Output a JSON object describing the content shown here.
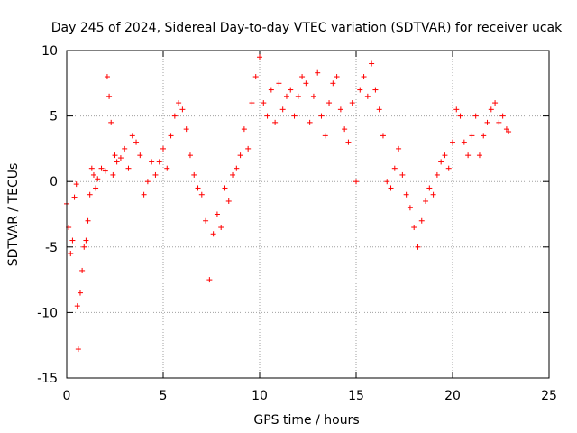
{
  "chart_data": {
    "type": "scatter",
    "title": "Day 245 of 2024, Sidereal Day-to-day VTEC variation (SDTVAR) for receiver ucak",
    "xlabel": "GPS time / hours",
    "ylabel": "SDTVAR / TECUs",
    "xlim": [
      0,
      25
    ],
    "ylim": [
      -15,
      10
    ],
    "xticks": [
      0,
      5,
      10,
      15,
      20,
      25
    ],
    "yticks": [
      -15,
      -10,
      -5,
      0,
      5,
      10
    ],
    "xtick_labels": [
      "0",
      "5",
      "10",
      "15",
      "20",
      "25"
    ],
    "ytick_labels": [
      "-15",
      "-10",
      "-5",
      "0",
      "5",
      "10"
    ],
    "grid": true,
    "marker": "+",
    "color": "#ff0000",
    "series": [
      {
        "name": "SDTVAR",
        "x": [
          0.0,
          0.1,
          0.2,
          0.3,
          0.4,
          0.5,
          0.55,
          0.6,
          0.7,
          0.8,
          0.9,
          1.0,
          1.1,
          1.2,
          1.3,
          1.4,
          1.5,
          1.6,
          1.8,
          2.0,
          2.1,
          2.2,
          2.3,
          2.4,
          2.5,
          2.6,
          2.8,
          3.0,
          3.2,
          3.4,
          3.6,
          3.8,
          4.0,
          4.2,
          4.4,
          4.6,
          4.8,
          5.0,
          5.2,
          5.4,
          5.6,
          5.8,
          6.0,
          6.2,
          6.4,
          6.6,
          6.8,
          7.0,
          7.2,
          7.4,
          7.6,
          7.8,
          8.0,
          8.2,
          8.4,
          8.6,
          8.8,
          9.0,
          9.2,
          9.4,
          9.6,
          9.8,
          10.0,
          10.2,
          10.4,
          10.6,
          10.8,
          11.0,
          11.2,
          11.4,
          11.6,
          11.8,
          12.0,
          12.2,
          12.4,
          12.6,
          12.8,
          13.0,
          13.2,
          13.4,
          13.6,
          13.8,
          14.0,
          14.2,
          14.4,
          14.6,
          14.8,
          15.0,
          15.2,
          15.4,
          15.6,
          15.8,
          16.0,
          16.2,
          16.4,
          16.6,
          16.8,
          17.0,
          17.2,
          17.4,
          17.6,
          17.8,
          18.0,
          18.2,
          18.4,
          18.6,
          18.8,
          19.0,
          19.2,
          19.4,
          19.6,
          19.8,
          20.0,
          20.2,
          20.4,
          20.6,
          20.8,
          21.0,
          21.2,
          21.4,
          21.6,
          21.8,
          22.0,
          22.2,
          22.4,
          22.6,
          22.8,
          22.9
        ],
        "y": [
          -1.7,
          -3.5,
          -5.5,
          -4.5,
          -1.2,
          -0.2,
          -9.5,
          -12.8,
          -8.5,
          -6.8,
          -5.0,
          -4.5,
          -3.0,
          -1.0,
          1.0,
          0.5,
          -0.5,
          0.2,
          1.0,
          0.8,
          8.0,
          6.5,
          4.5,
          0.5,
          2.0,
          1.5,
          1.8,
          2.5,
          1.0,
          3.5,
          3.0,
          2.0,
          -1.0,
          0.0,
          1.5,
          0.5,
          1.5,
          2.5,
          1.0,
          3.5,
          5.0,
          6.0,
          5.5,
          4.0,
          2.0,
          0.5,
          -0.5,
          -1.0,
          -3.0,
          -7.5,
          -4.0,
          -2.5,
          -3.5,
          -0.5,
          -1.5,
          0.5,
          1.0,
          2.0,
          4.0,
          2.5,
          6.0,
          8.0,
          9.5,
          6.0,
          5.0,
          7.0,
          4.5,
          7.5,
          5.5,
          6.5,
          7.0,
          5.0,
          6.5,
          8.0,
          7.5,
          4.5,
          6.5,
          8.3,
          5.0,
          3.5,
          6.0,
          7.5,
          8.0,
          5.5,
          4.0,
          3.0,
          6.0,
          0.0,
          7.0,
          8.0,
          6.5,
          9.0,
          7.0,
          5.5,
          3.5,
          0.0,
          -0.5,
          1.0,
          2.5,
          0.5,
          -1.0,
          -2.0,
          -3.5,
          -5.0,
          -3.0,
          -1.5,
          -0.5,
          -1.0,
          0.5,
          1.5,
          2.0,
          1.0,
          3.0,
          5.5,
          5.0,
          3.0,
          2.0,
          3.5,
          5.0,
          2.0,
          3.5,
          4.5,
          5.5,
          6.0,
          4.5,
          5.0,
          4.0,
          3.8
        ]
      }
    ]
  }
}
